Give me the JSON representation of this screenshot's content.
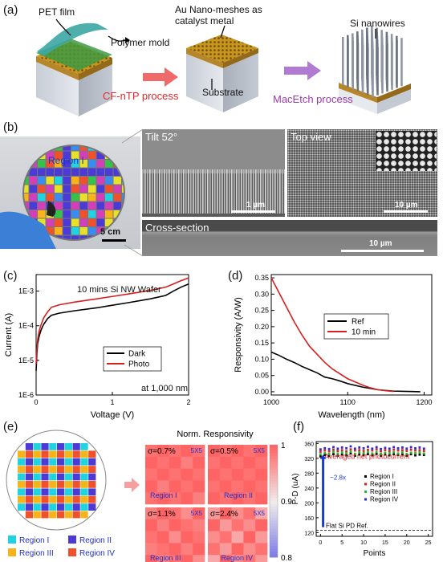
{
  "panel_labels": {
    "a": "(a)",
    "b": "(b)",
    "c": "(c)",
    "d": "(d)",
    "e": "(e)",
    "f": "(f)"
  },
  "panel_a": {
    "pet_film": "PET film",
    "polymer_mold": "Polymer mold",
    "au_label": "Au Nano-meshes as\ncatalyst metal",
    "substrate": "Substrate",
    "si_nanowires": "Si nanowires",
    "process1": "CF-nTP process",
    "process2": "MacEtch process",
    "colors": {
      "process1": "#e8262b",
      "process2": "#9b3ba8",
      "arrow1": "#f06a6a",
      "arrow2": "#b27bd3"
    }
  },
  "panel_b": {
    "region_label": "Region I",
    "wafer_scale": "5 cm",
    "tilt": "Tilt 52°",
    "tilt_scale": "1 µm",
    "top_view": "Top view",
    "top_scale": "10 µm",
    "cross_section": "Cross-section",
    "cross_scale": "10 µm"
  },
  "panel_c": {
    "annotation": "10 mins Si NW Wafer",
    "note": "at 1,000 nm",
    "xlabel": "Voltage (V)",
    "ylabel": "Current (A)",
    "xticks": [
      "0",
      "1",
      "2"
    ],
    "yticks": [
      "1E-6",
      "1E-5",
      "1E-4",
      "1E-3"
    ],
    "legend": [
      "Dark",
      "Photo"
    ],
    "colors": [
      "#000000",
      "#d62020"
    ]
  },
  "panel_d": {
    "xlabel": "Wavelength (nm)",
    "ylabel": "Responsivity (A/W)",
    "xticks": [
      "1000",
      "1100",
      "1200"
    ],
    "yticks": [
      "0.00",
      "0.05",
      "0.10",
      "0.15",
      "0.20",
      "0.25",
      "0.30",
      "0.35"
    ],
    "legend": [
      "Ref",
      "10 min"
    ],
    "colors": [
      "#000000",
      "#d62020"
    ]
  },
  "panel_e": {
    "title": "Norm. Responsivity",
    "cells": [
      {
        "sigma": "σ=0.7%",
        "size": "5X5",
        "region": "Region I"
      },
      {
        "sigma": "σ=0.5%",
        "size": "5X5",
        "region": "Region II"
      },
      {
        "sigma": "σ=1.1%",
        "size": "5X5",
        "region": "Region III"
      },
      {
        "sigma": "σ=2.4%",
        "size": "5X5",
        "region": "Region IV"
      }
    ],
    "colorbar": [
      "1",
      "0.9",
      "0.8"
    ],
    "legend": [
      {
        "label": "Region I",
        "color": "#1fd3e0"
      },
      {
        "label": "Region II",
        "color": "#4b3ad6"
      },
      {
        "label": "Region III",
        "color": "#f7b318"
      },
      {
        "label": "Region IV",
        "color": "#f0512a"
      }
    ]
  },
  "panel_f": {
    "xlabel": "Points",
    "ylabel": "P-D (uA)",
    "xticks": [
      "0",
      "5",
      "10",
      "15",
      "20",
      "25"
    ],
    "yticks": [
      "120",
      "160",
      "200",
      "240",
      "280",
      "320",
      "360"
    ],
    "annot_red": "Averaged net photocurrent",
    "annot_fold": "~2.8x",
    "ref_label": "Flat Si PD Ref.",
    "legend": [
      "Region I",
      "Region II",
      "Region III",
      "Region IV"
    ],
    "colors": [
      "#000000",
      "#e02020",
      "#28b828",
      "#2a2ad8"
    ]
  },
  "chart_data": [
    {
      "type": "line",
      "panel": "c",
      "xlabel": "Voltage (V)",
      "ylabel": "Current (A)",
      "yscale": "log",
      "xlim": [
        0,
        2
      ],
      "ylim": [
        1e-06,
        0.003
      ],
      "series": [
        {
          "name": "Dark",
          "x": [
            0.0,
            0.01,
            0.02,
            0.04,
            0.06,
            0.08,
            0.1,
            0.15,
            0.2,
            0.3,
            0.5,
            0.8,
            1.0,
            1.2,
            1.5,
            1.7,
            1.8,
            1.9,
            2.0
          ],
          "y": [
            5e-06,
            1.5e-05,
            3e-05,
            5e-05,
            7e-05,
            9e-05,
            0.00011,
            0.00016,
            0.0002,
            0.00023,
            0.00027,
            0.00033,
            0.00039,
            0.00046,
            0.0006,
            0.00075,
            0.001,
            0.0013,
            0.0016
          ]
        },
        {
          "name": "Photo",
          "x": [
            0.0,
            0.01,
            0.02,
            0.04,
            0.06,
            0.08,
            0.1,
            0.15,
            0.2,
            0.3,
            0.5,
            0.8,
            1.0,
            1.2,
            1.5,
            1.7,
            1.8,
            1.9,
            2.0
          ],
          "y": [
            8e-06,
            2e-05,
            4e-05,
            7e-05,
            0.0001,
            0.00013,
            0.00017,
            0.00025,
            0.00034,
            0.0004,
            0.00048,
            0.0006,
            0.0007,
            0.00082,
            0.00105,
            0.0013,
            0.0016,
            0.002,
            0.0024
          ]
        }
      ]
    },
    {
      "type": "line",
      "panel": "d",
      "xlabel": "Wavelength (nm)",
      "ylabel": "Responsivity (A/W)",
      "xlim": [
        1000,
        1210
      ],
      "ylim": [
        -0.01,
        0.36
      ],
      "series": [
        {
          "name": "Ref",
          "x": [
            1000,
            1010,
            1020,
            1030,
            1040,
            1050,
            1060,
            1070,
            1080,
            1090,
            1100,
            1120,
            1140,
            1160,
            1180,
            1195
          ],
          "y": [
            0.122,
            0.112,
            0.1,
            0.09,
            0.078,
            0.068,
            0.058,
            0.045,
            0.04,
            0.033,
            0.025,
            0.014,
            0.006,
            0.002,
            0.001,
            0.0
          ]
        },
        {
          "name": "10 min",
          "x": [
            1000,
            1010,
            1020,
            1030,
            1040,
            1050,
            1060,
            1070,
            1080,
            1090,
            1100,
            1110,
            1120,
            1130,
            1140,
            1150,
            1160
          ],
          "y": [
            0.35,
            0.305,
            0.26,
            0.215,
            0.175,
            0.14,
            0.115,
            0.09,
            0.07,
            0.055,
            0.04,
            0.03,
            0.02,
            0.012,
            0.006,
            0.003,
            0.001
          ]
        }
      ]
    },
    {
      "type": "scatter",
      "panel": "f",
      "xlabel": "Points",
      "ylabel": "P-D (uA)",
      "xlim": [
        -1,
        26
      ],
      "ylim": [
        110,
        365
      ],
      "reference": 126,
      "series": [
        {
          "name": "Region I",
          "values": [
            325,
            329,
            326,
            331,
            327,
            330,
            328,
            333,
            327,
            330,
            329,
            331,
            328,
            332,
            327,
            330,
            328,
            331,
            329,
            330,
            327,
            331,
            328,
            330,
            329
          ]
        },
        {
          "name": "Region II",
          "values": [
            338,
            341,
            339,
            343,
            340,
            342,
            339,
            344,
            341,
            342,
            340,
            343,
            341,
            344,
            339,
            342,
            340,
            343,
            341,
            342,
            340,
            343,
            341,
            342,
            340
          ]
        },
        {
          "name": "Region III",
          "values": [
            331,
            334,
            332,
            337,
            333,
            336,
            334,
            338,
            332,
            336,
            334,
            337,
            333,
            337,
            332,
            335,
            334,
            336,
            333,
            336,
            332,
            335,
            334,
            336,
            333
          ]
        },
        {
          "name": "Region IV",
          "values": [
            344,
            347,
            345,
            350,
            346,
            349,
            347,
            352,
            346,
            349,
            347,
            351,
            346,
            350,
            345,
            348,
            346,
            350,
            347,
            349,
            346,
            350,
            347,
            349,
            346
          ]
        }
      ]
    },
    {
      "type": "heatmap",
      "panel": "e",
      "title": "Norm. Responsivity",
      "colorbar_range": [
        0.8,
        1.0
      ],
      "grids": [
        {
          "region": "Region I",
          "sigma_percent": 0.7,
          "values": [
            [
              0.99,
              1.0,
              0.99,
              1.0,
              0.99
            ],
            [
              1.0,
              0.99,
              1.0,
              0.98,
              1.0
            ],
            [
              0.99,
              1.0,
              0.99,
              1.0,
              0.99
            ],
            [
              1.0,
              0.98,
              1.0,
              0.99,
              1.0
            ],
            [
              0.99,
              1.0,
              0.99,
              1.0,
              0.98
            ]
          ]
        },
        {
          "region": "Region II",
          "sigma_percent": 0.5,
          "values": [
            [
              1.0,
              0.99,
              1.0,
              0.99,
              1.0
            ],
            [
              0.99,
              1.0,
              0.99,
              1.0,
              0.99
            ],
            [
              1.0,
              0.99,
              1.0,
              0.99,
              1.0
            ],
            [
              0.99,
              1.0,
              0.99,
              1.0,
              0.99
            ],
            [
              1.0,
              0.99,
              1.0,
              0.99,
              1.0
            ]
          ]
        },
        {
          "region": "Region III",
          "sigma_percent": 1.1,
          "values": [
            [
              0.98,
              1.0,
              0.99,
              0.97,
              1.0
            ],
            [
              1.0,
              0.98,
              1.0,
              0.99,
              0.98
            ],
            [
              0.99,
              1.0,
              0.97,
              1.0,
              0.99
            ],
            [
              0.98,
              0.99,
              1.0,
              0.98,
              1.0
            ],
            [
              1.0,
              0.98,
              0.99,
              1.0,
              0.97
            ]
          ]
        },
        {
          "region": "Region IV",
          "sigma_percent": 2.4,
          "values": [
            [
              0.96,
              1.0,
              0.97,
              0.99,
              0.95
            ],
            [
              1.0,
              0.96,
              0.99,
              0.97,
              1.0
            ],
            [
              0.97,
              0.99,
              0.95,
              1.0,
              0.96
            ],
            [
              0.99,
              0.96,
              1.0,
              0.97,
              0.99
            ],
            [
              0.95,
              1.0,
              0.97,
              0.99,
              0.96
            ]
          ]
        }
      ]
    }
  ]
}
